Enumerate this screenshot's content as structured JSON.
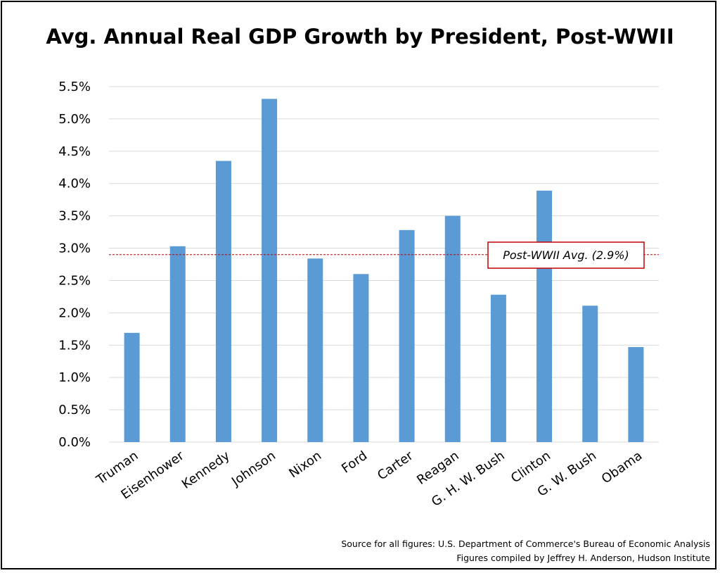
{
  "chart_data": {
    "type": "bar",
    "title": "Avg. Annual Real GDP Growth by President, Post-WWII",
    "xlabel": "",
    "ylabel": "",
    "categories": [
      "Truman",
      "Eisenhower",
      "Kennedy",
      "Johnson",
      "Nixon",
      "Ford",
      "Carter",
      "Reagan",
      "G. H. W. Bush",
      "Clinton",
      "G. W. Bush",
      "Obama"
    ],
    "values": [
      1.69,
      3.03,
      4.35,
      5.31,
      2.84,
      2.6,
      3.28,
      3.5,
      2.28,
      3.89,
      2.11,
      1.47
    ],
    "ylim": [
      0,
      5.5
    ],
    "yticks": [
      "0.0%",
      "0.5%",
      "1.0%",
      "1.5%",
      "2.0%",
      "2.5%",
      "3.0%",
      "3.5%",
      "4.0%",
      "4.5%",
      "5.0%",
      "5.5%"
    ],
    "grid": true,
    "bar_color": "#5b9bd5",
    "reference_line": {
      "value": 2.9,
      "label": "Post-WWII Avg. (2.9%)",
      "color": "#c00000"
    },
    "source_lines": [
      "Source for all figures: U.S. Department of Commerce's Bureau of Economic Analysis",
      "Figures compiled by Jeffrey H. Anderson, Hudson Institute"
    ]
  }
}
